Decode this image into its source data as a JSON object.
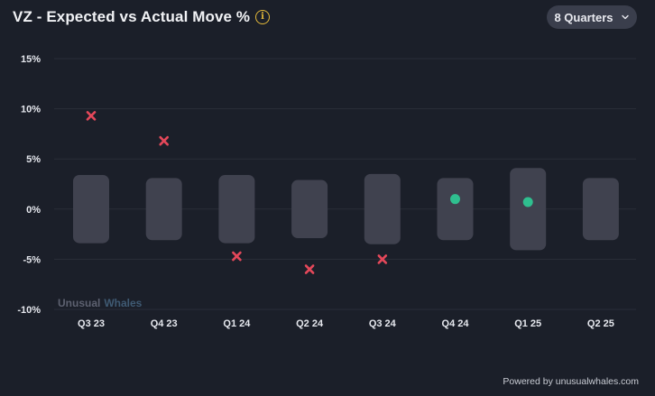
{
  "header": {
    "title": "VZ - Expected vs Actual Move %",
    "info_icon": "info-circle-icon",
    "dropdown_label": "8 Quarters",
    "dropdown_icon": "chevron-down-icon"
  },
  "watermark": {
    "part1": "Unusual",
    "part2": "Whales"
  },
  "footer": {
    "text": "Powered by unusualwhales.com"
  },
  "colors": {
    "background": "#1b1f29",
    "range_bar": "#40424f",
    "miss": "#e5485a",
    "within": "#2fbf8f",
    "grid": "#2a2e39"
  },
  "chart_data": {
    "type": "range-scatter",
    "title": "VZ - Expected vs Actual Move %",
    "categories": [
      "Q3 23",
      "Q4 23",
      "Q1 24",
      "Q2 24",
      "Q3 24",
      "Q4 24",
      "Q1 25",
      "Q2 25"
    ],
    "y_ticks": [
      "15%",
      "10%",
      "5%",
      "0%",
      "-5%",
      "-10%"
    ],
    "ylim": [
      -10,
      15
    ],
    "grid": true,
    "expected_range": [
      {
        "low": -3.4,
        "high": 3.4
      },
      {
        "low": -3.1,
        "high": 3.1
      },
      {
        "low": -3.4,
        "high": 3.4
      },
      {
        "low": -2.9,
        "high": 2.9
      },
      {
        "low": -3.5,
        "high": 3.5
      },
      {
        "low": -3.1,
        "high": 3.1
      },
      {
        "low": -4.1,
        "high": 4.1
      },
      {
        "low": -3.1,
        "high": 3.1
      }
    ],
    "actual_move": [
      9.3,
      6.8,
      -4.7,
      -6.0,
      -5.0,
      1.0,
      0.7,
      null
    ],
    "marker": [
      "miss",
      "miss",
      "miss",
      "miss",
      "miss",
      "within",
      "within",
      null
    ]
  }
}
